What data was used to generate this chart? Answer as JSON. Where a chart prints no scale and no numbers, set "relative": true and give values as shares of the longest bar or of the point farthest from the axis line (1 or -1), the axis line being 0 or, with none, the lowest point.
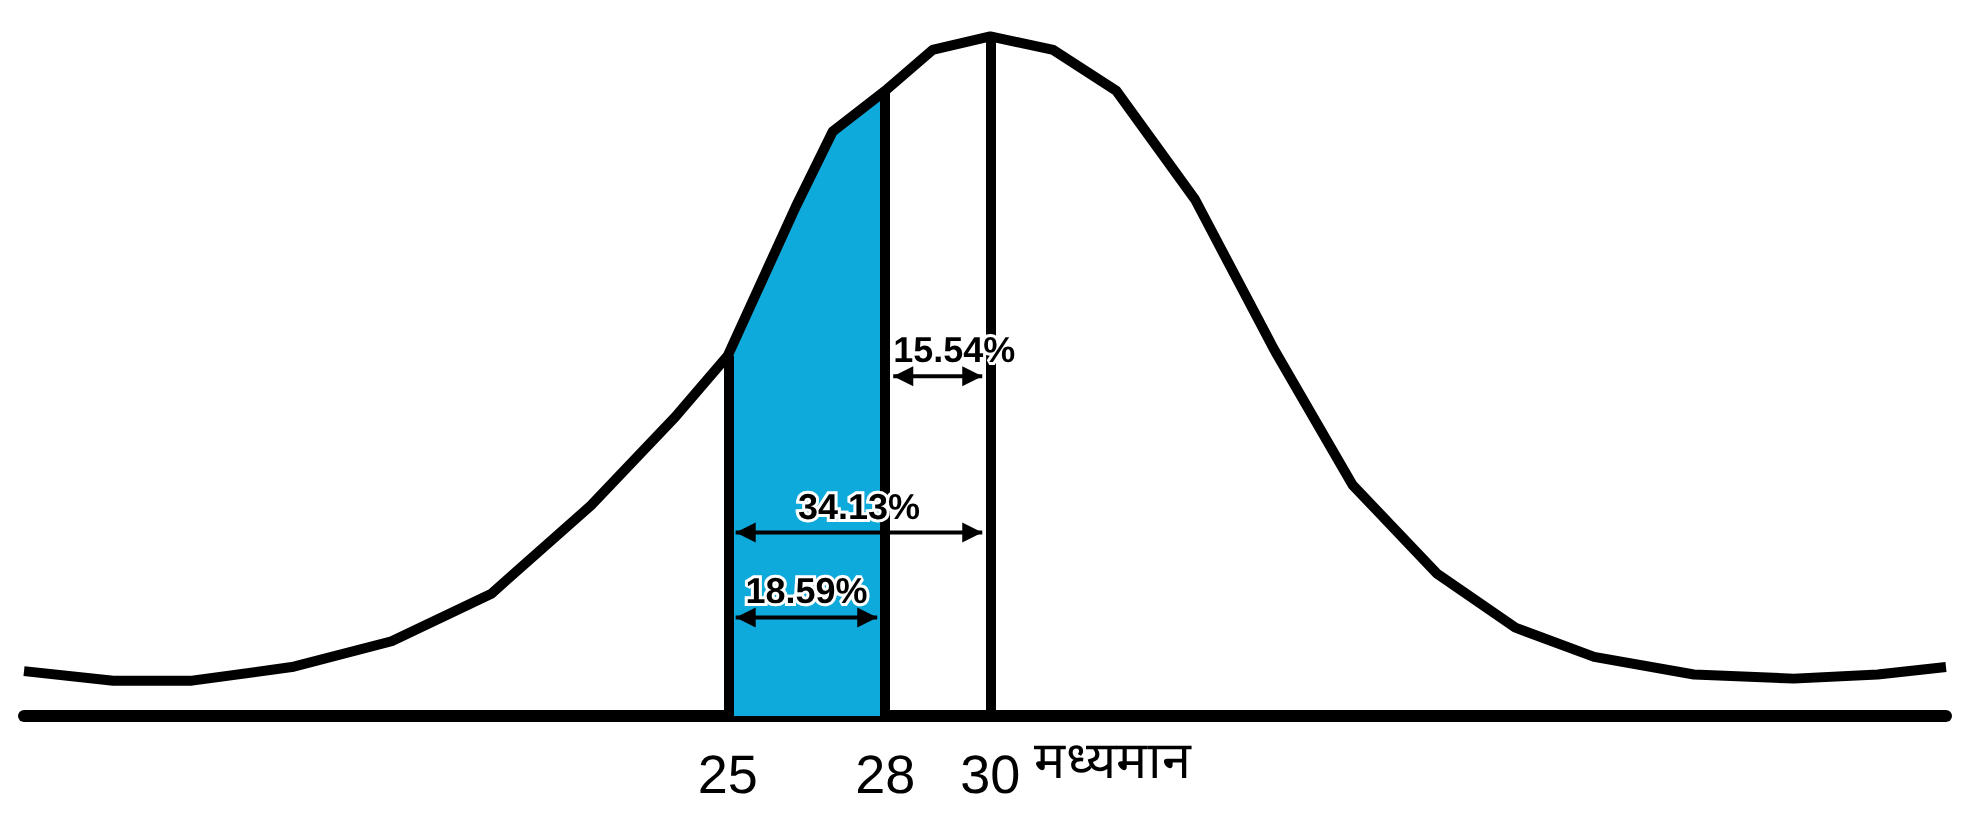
{
  "chart_data": {
    "type": "line",
    "relative": true,
    "xlabel": "मध्यमान",
    "x": [
      11.6,
      13.3,
      14.8,
      16.7,
      18.6,
      20.5,
      22.4,
      24.0,
      25,
      26.3,
      27.0,
      28,
      28.9,
      30,
      31.2,
      32.4,
      33.9,
      35.4,
      36.9,
      38.5,
      40.0,
      41.5,
      43.4,
      45.3,
      46.9,
      48.2
    ],
    "series": [
      {
        "type": "area",
        "color": "#0eaadc",
        "x": [
          25,
          26.3,
          27.0,
          28
        ],
        "values": [
          0.53,
          0.75,
          0.86,
          0.92
        ]
      },
      {
        "color": "#000000",
        "values": [
          0.066,
          0.052,
          0.052,
          0.072,
          0.11,
          0.18,
          0.31,
          0.44,
          0.53,
          0.75,
          0.86,
          0.92,
          0.98,
          1,
          0.98,
          0.92,
          0.76,
          0.54,
          0.34,
          0.21,
          0.13,
          0.087,
          0.061,
          0.055,
          0.061,
          0.072
        ]
      }
    ],
    "xlim": [
      11.6,
      48.2
    ],
    "xticks": [
      25,
      28,
      30
    ],
    "tick_labels": "x",
    "grid": false,
    "marker": "none",
    "ref_lines": [
      {
        "axis": "x",
        "value": 25,
        "color": "#000000"
      },
      {
        "axis": "x",
        "value": 28,
        "color": "#000000"
      },
      {
        "axis": "x",
        "value": 30,
        "color": "#000000"
      }
    ],
    "annotations": [
      "15.54%",
      "34.13%",
      "18.59%"
    ]
  }
}
